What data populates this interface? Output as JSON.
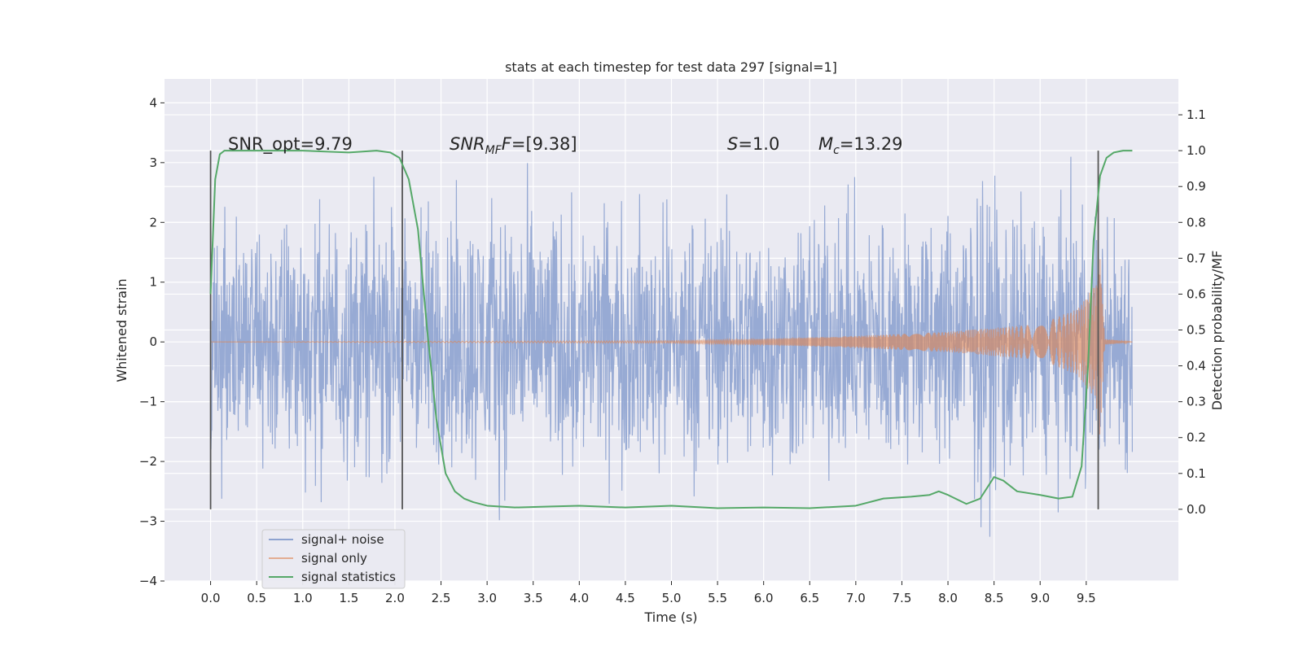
{
  "chart_data": {
    "type": "line",
    "title": "stats at each timestep for test data 297 [signal=1]",
    "xlabel": "Time (s)",
    "ylabel": "Whitened strain",
    "ylabel_right": "Detection probability/MF",
    "xlim": [
      -0.5,
      10.5
    ],
    "ylim": [
      -4,
      4.4
    ],
    "ylim_right": [
      -0.2,
      1.2
    ],
    "x_ticks": [
      "0.0",
      "0.5",
      "1.0",
      "1.5",
      "2.0",
      "2.5",
      "3.0",
      "3.5",
      "4.0",
      "4.5",
      "5.0",
      "5.5",
      "6.0",
      "6.5",
      "7.0",
      "7.5",
      "8.0",
      "8.5",
      "9.0",
      "9.5"
    ],
    "y_ticks": [
      "−4",
      "−3",
      "−2",
      "−1",
      "0",
      "1",
      "2",
      "3",
      "4"
    ],
    "y_ticks_right": [
      "0.0",
      "0.1",
      "0.2",
      "0.3",
      "0.4",
      "0.5",
      "0.6",
      "0.7",
      "0.8",
      "0.9",
      "1.0",
      "1.1"
    ],
    "grid": true,
    "legend_position": "lower-left",
    "annotations": {
      "snr_opt": "SNR_opt=9.79",
      "snr_mf_main": "SNR",
      "snr_mf_sub": "MF",
      "snr_mf_rest": "=[9.38]",
      "s_var": "S",
      "s_rest": "=1.0",
      "mc_var": "M",
      "mc_sub": "c",
      "mc_rest": "=13.29"
    },
    "vertical_markers_x": [
      0.0,
      2.08,
      9.63
    ],
    "vertical_markers_yrange": [
      -2.8,
      3.2
    ],
    "series": [
      {
        "name": "signal+ noise",
        "color": "#8ea3d0",
        "x_range": [
          0.0,
          10.0
        ],
        "amplitude_envelope": {
          "x": [
            0.0,
            1.0,
            2.0,
            3.0,
            4.0,
            5.0,
            6.0,
            7.0,
            8.0,
            8.5,
            9.0,
            9.5,
            10.0
          ],
          "y": [
            3.0,
            3.0,
            3.0,
            3.3,
            3.0,
            3.0,
            3.0,
            3.0,
            3.0,
            3.8,
            3.0,
            3.0,
            3.0
          ]
        }
      },
      {
        "name": "signal only",
        "color": "#dd8452",
        "x_range": [
          0.0,
          10.0
        ],
        "amplitude_envelope": {
          "x": [
            0.0,
            5.0,
            6.0,
            7.0,
            8.0,
            9.0,
            9.4,
            9.6,
            9.65,
            9.7,
            10.0
          ],
          "y": [
            0.0,
            0.02,
            0.05,
            0.1,
            0.17,
            0.3,
            0.55,
            0.95,
            1.6,
            0.05,
            0.0
          ]
        }
      },
      {
        "name": "signal statistics",
        "color": "#55a868",
        "axis": "right",
        "x": [
          0.0,
          0.05,
          0.1,
          0.15,
          0.2,
          0.3,
          0.5,
          1.0,
          1.5,
          1.8,
          1.95,
          2.05,
          2.15,
          2.25,
          2.35,
          2.45,
          2.55,
          2.65,
          2.75,
          2.85,
          3.0,
          3.3,
          3.7,
          4.0,
          4.5,
          5.0,
          5.5,
          6.0,
          6.5,
          7.0,
          7.3,
          7.6,
          7.8,
          7.9,
          8.0,
          8.2,
          8.35,
          8.5,
          8.6,
          8.75,
          9.0,
          9.2,
          9.35,
          9.45,
          9.52,
          9.58,
          9.65,
          9.72,
          9.8,
          9.9,
          10.0
        ],
        "y": [
          0.6,
          0.92,
          0.99,
          1.0,
          1.0,
          1.0,
          1.0,
          1.0,
          0.995,
          1.0,
          0.995,
          0.98,
          0.92,
          0.78,
          0.5,
          0.25,
          0.1,
          0.05,
          0.03,
          0.02,
          0.01,
          0.005,
          0.008,
          0.01,
          0.005,
          0.01,
          0.003,
          0.005,
          0.003,
          0.01,
          0.03,
          0.035,
          0.04,
          0.05,
          0.04,
          0.015,
          0.03,
          0.09,
          0.08,
          0.05,
          0.04,
          0.03,
          0.035,
          0.12,
          0.4,
          0.75,
          0.93,
          0.98,
          0.995,
          1.0,
          1.0
        ]
      }
    ]
  }
}
